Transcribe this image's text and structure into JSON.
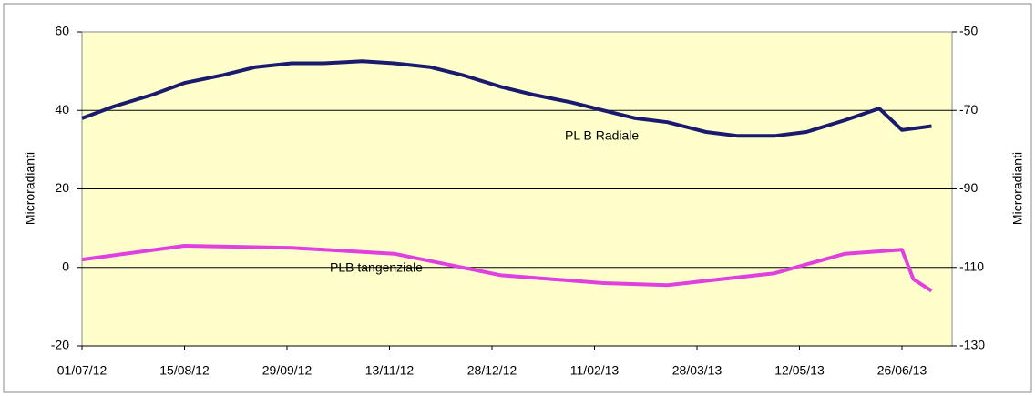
{
  "chart_data": {
    "type": "line",
    "ylabel": "Microradianti",
    "y2label": "Microradianti",
    "xlim": [
      "2012-07-01",
      "2013-07-18"
    ],
    "xticks": [
      {
        "value": "2012-07-01",
        "label": "01/07/12"
      },
      {
        "value": "2012-08-15",
        "label": "15/08/12"
      },
      {
        "value": "2012-09-29",
        "label": "29/09/12"
      },
      {
        "value": "2012-11-13",
        "label": "13/11/12"
      },
      {
        "value": "2012-12-28",
        "label": "28/12/12"
      },
      {
        "value": "2013-02-11",
        "label": "11/02/13"
      },
      {
        "value": "2013-03-28",
        "label": "28/03/13"
      },
      {
        "value": "2013-05-12",
        "label": "12/05/13"
      },
      {
        "value": "2013-06-26",
        "label": "26/06/13"
      }
    ],
    "ylim": [
      -20,
      60
    ],
    "yticks": [
      -20,
      0,
      20,
      40,
      60
    ],
    "y2lim": [
      -130,
      -50
    ],
    "y2ticks": [
      -50,
      -70,
      -90,
      -110,
      -130
    ],
    "grid": true,
    "plot_background": "#ffffcc",
    "annotations": [
      "PL B Radiale",
      "PLB tangenziale"
    ],
    "series": [
      {
        "name": "PL B Radiale",
        "color": "#1a1a6e",
        "x": [
          "2012-07-01",
          "2012-07-15",
          "2012-08-01",
          "2012-08-15",
          "2012-09-01",
          "2012-09-15",
          "2012-10-01",
          "2012-10-15",
          "2012-11-01",
          "2012-11-15",
          "2012-12-01",
          "2012-12-15",
          "2013-01-01",
          "2013-01-15",
          "2013-02-01",
          "2013-02-15",
          "2013-03-01",
          "2013-03-15",
          "2013-04-01",
          "2013-04-15",
          "2013-05-01",
          "2013-05-15",
          "2013-06-01",
          "2013-06-16",
          "2013-06-26",
          "2013-07-09"
        ],
        "values": [
          38,
          41,
          44,
          47,
          49,
          51,
          52,
          52,
          52.5,
          52,
          51,
          49,
          46,
          44,
          42,
          40,
          38,
          37,
          34.5,
          33.5,
          33.5,
          34.5,
          37.5,
          40.5,
          35,
          36
        ]
      },
      {
        "name": "PLB tangenziale",
        "color": "#e040e0",
        "x": [
          "2012-07-01",
          "2012-08-15",
          "2012-10-01",
          "2012-11-15",
          "2013-01-01",
          "2013-02-15",
          "2013-03-15",
          "2013-05-01",
          "2013-06-01",
          "2013-06-26",
          "2013-07-01",
          "2013-07-09"
        ],
        "values": [
          2,
          5.5,
          5,
          3.5,
          -2,
          -4,
          -4.5,
          -1.5,
          3.5,
          4.5,
          -3,
          -6
        ]
      }
    ]
  }
}
